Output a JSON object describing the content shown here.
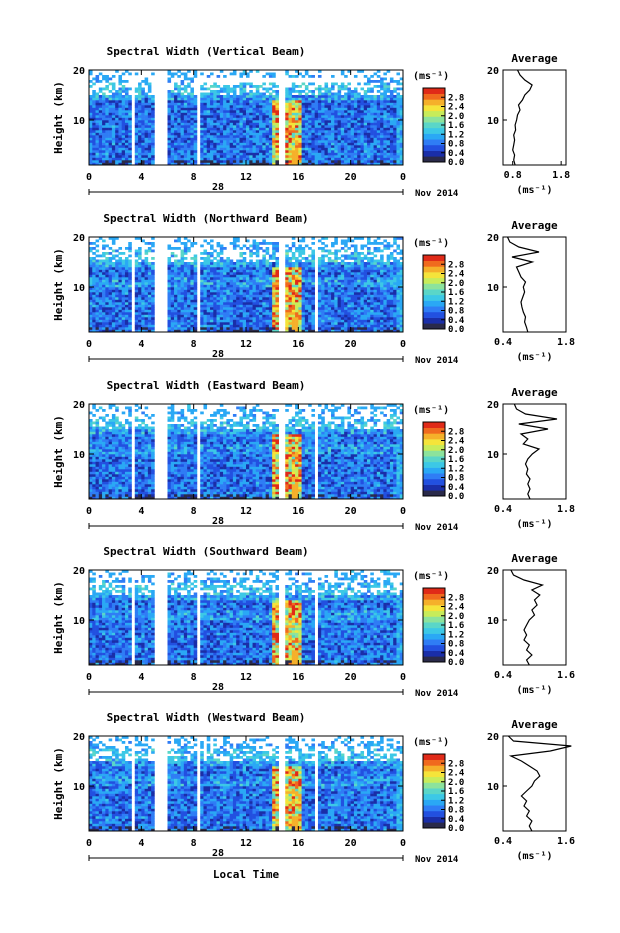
{
  "figure": {
    "xlabel": "Local Time",
    "date_label": "Nov 2014",
    "day_label": "28",
    "unit_label": "(ms⁻¹)",
    "ylabel": "Height (km)",
    "avg_title": "Average",
    "colors": [
      "#2a2a4a",
      "#1a2ea8",
      "#2250e0",
      "#2f7df5",
      "#2aa8f5",
      "#3cc8e6",
      "#5ad6c8",
      "#8ce39c",
      "#c8ec5a",
      "#f5e43a",
      "#f5b02a",
      "#f06a1e",
      "#e02a18"
    ],
    "blank_color": "#ffffff"
  },
  "chart_data": [
    {
      "type": "heatmap",
      "title": "Spectral Width (Vertical Beam)",
      "x_ticks": [
        "0",
        "4",
        "8",
        "12",
        "16",
        "20",
        "0"
      ],
      "xlim": [
        0,
        24
      ],
      "y_ticks": [
        "20",
        "10"
      ],
      "ylim": [
        1,
        20
      ],
      "colorbar_ticks": [
        "2.8",
        "2.4",
        "2.0",
        "1.6",
        "1.2",
        "0.8",
        "0.4",
        "0.0"
      ],
      "colorbar_range": [
        0,
        3.2
      ],
      "gaps_hours": [
        [
          3.3,
          3.6
        ],
        [
          5.1,
          6.0
        ],
        [
          8.2,
          8.6
        ],
        [
          14.6,
          15.1
        ]
      ],
      "avg_profile": {
        "x_ticks": [
          "0.8",
          "1.8"
        ],
        "xlim": [
          0.6,
          1.9
        ],
        "y_ticks": [
          "20",
          "10"
        ],
        "ylim": [
          1,
          20
        ],
        "height_km": [
          1,
          2,
          3,
          4,
          5,
          6,
          7,
          8,
          9,
          10,
          11,
          12,
          13,
          14,
          15,
          16,
          17,
          18,
          19,
          20
        ],
        "width_ms": [
          0.85,
          0.82,
          0.84,
          0.8,
          0.82,
          0.84,
          0.82,
          0.86,
          0.85,
          0.88,
          0.9,
          0.95,
          0.92,
          1.0,
          1.05,
          1.15,
          1.2,
          1.05,
          0.95,
          0.9
        ]
      }
    },
    {
      "type": "heatmap",
      "title": "Spectral Width (Northward Beam)",
      "x_ticks": [
        "0",
        "4",
        "8",
        "12",
        "16",
        "20",
        "0"
      ],
      "xlim": [
        0,
        24
      ],
      "y_ticks": [
        "20",
        "10"
      ],
      "ylim": [
        1,
        20
      ],
      "colorbar_ticks": [
        "2.8",
        "2.4",
        "2.0",
        "1.6",
        "1.2",
        "0.8",
        "0.4",
        "0.0"
      ],
      "colorbar_range": [
        0,
        3.2
      ],
      "gaps_hours": [
        [
          3.3,
          3.6
        ],
        [
          5.1,
          6.0
        ],
        [
          8.2,
          8.6
        ],
        [
          14.6,
          15.1
        ],
        [
          17.2,
          17.5
        ]
      ],
      "avg_profile": {
        "x_ticks": [
          "0.4",
          "1.8"
        ],
        "xlim": [
          0.4,
          1.8
        ],
        "y_ticks": [
          "20",
          "10"
        ],
        "ylim": [
          1,
          20
        ],
        "height_km": [
          1,
          2,
          3,
          4,
          5,
          6,
          7,
          8,
          9,
          10,
          11,
          12,
          13,
          14,
          15,
          16,
          17,
          18,
          19,
          20
        ],
        "width_ms": [
          0.95,
          0.92,
          0.88,
          0.9,
          0.85,
          0.82,
          0.8,
          0.84,
          0.88,
          0.85,
          0.9,
          0.8,
          0.75,
          0.7,
          1.05,
          0.6,
          1.2,
          0.75,
          0.55,
          0.5
        ]
      }
    },
    {
      "type": "heatmap",
      "title": "Spectral Width (Eastward Beam)",
      "x_ticks": [
        "0",
        "4",
        "8",
        "12",
        "16",
        "20",
        "0"
      ],
      "xlim": [
        0,
        24
      ],
      "y_ticks": [
        "20",
        "10"
      ],
      "ylim": [
        1,
        20
      ],
      "colorbar_ticks": [
        "2.8",
        "2.4",
        "2.0",
        "1.6",
        "1.2",
        "0.8",
        "0.4",
        "0.0"
      ],
      "colorbar_range": [
        0,
        3.2
      ],
      "gaps_hours": [
        [
          3.3,
          3.6
        ],
        [
          5.1,
          6.0
        ],
        [
          8.2,
          8.6
        ],
        [
          14.6,
          15.1
        ],
        [
          17.2,
          17.5
        ]
      ],
      "avg_profile": {
        "x_ticks": [
          "0.4",
          "1.8"
        ],
        "xlim": [
          0.4,
          1.8
        ],
        "y_ticks": [
          "20",
          "10"
        ],
        "ylim": [
          1,
          20
        ],
        "height_km": [
          1,
          2,
          3,
          4,
          5,
          6,
          7,
          8,
          9,
          10,
          11,
          12,
          13,
          14,
          15,
          16,
          17,
          18,
          19,
          20
        ],
        "width_ms": [
          1.0,
          0.95,
          1.0,
          0.95,
          1.0,
          0.92,
          0.95,
          0.9,
          0.95,
          1.05,
          1.2,
          0.85,
          0.95,
          0.8,
          1.4,
          0.75,
          1.6,
          0.9,
          0.7,
          0.65
        ]
      }
    },
    {
      "type": "heatmap",
      "title": "Spectral Width (Southward Beam)",
      "x_ticks": [
        "0",
        "4",
        "8",
        "12",
        "16",
        "20",
        "0"
      ],
      "xlim": [
        0,
        24
      ],
      "y_ticks": [
        "20",
        "10"
      ],
      "ylim": [
        1,
        20
      ],
      "colorbar_ticks": [
        "2.8",
        "2.4",
        "2.0",
        "1.6",
        "1.2",
        "0.8",
        "0.4",
        "0.0"
      ],
      "colorbar_range": [
        0,
        3.2
      ],
      "gaps_hours": [
        [
          3.3,
          3.6
        ],
        [
          5.1,
          6.0
        ],
        [
          8.2,
          8.6
        ],
        [
          14.6,
          15.1
        ],
        [
          17.2,
          17.5
        ]
      ],
      "avg_profile": {
        "x_ticks": [
          "0.4",
          "1.6"
        ],
        "xlim": [
          0.4,
          1.6
        ],
        "y_ticks": [
          "20",
          "10"
        ],
        "ylim": [
          1,
          20
        ],
        "height_km": [
          1,
          2,
          3,
          4,
          5,
          6,
          7,
          8,
          9,
          10,
          11,
          12,
          13,
          14,
          15,
          16,
          17,
          18,
          19,
          20
        ],
        "width_ms": [
          0.9,
          0.85,
          0.95,
          0.85,
          0.9,
          0.8,
          0.85,
          0.8,
          0.85,
          0.9,
          1.0,
          0.95,
          1.05,
          1.0,
          1.1,
          0.95,
          1.15,
          0.8,
          0.6,
          0.55
        ]
      }
    },
    {
      "type": "heatmap",
      "title": "Spectral Width (Westward Beam)",
      "x_ticks": [
        "0",
        "4",
        "8",
        "12",
        "16",
        "20",
        "0"
      ],
      "xlim": [
        0,
        24
      ],
      "y_ticks": [
        "20",
        "10"
      ],
      "ylim": [
        1,
        20
      ],
      "colorbar_ticks": [
        "2.8",
        "2.4",
        "2.0",
        "1.6",
        "1.2",
        "0.8",
        "0.4",
        "0.0"
      ],
      "colorbar_range": [
        0,
        3.2
      ],
      "gaps_hours": [
        [
          3.3,
          3.6
        ],
        [
          5.1,
          6.0
        ],
        [
          8.2,
          8.6
        ],
        [
          14.6,
          15.1
        ],
        [
          17.2,
          17.5
        ]
      ],
      "avg_profile": {
        "x_ticks": [
          "0.4",
          "1.6"
        ],
        "xlim": [
          0.4,
          1.6
        ],
        "y_ticks": [
          "20",
          "10"
        ],
        "ylim": [
          1,
          20
        ],
        "height_km": [
          1,
          2,
          3,
          4,
          5,
          6,
          7,
          8,
          9,
          10,
          11,
          12,
          13,
          14,
          15,
          16,
          17,
          18,
          19,
          20
        ],
        "width_ms": [
          0.95,
          0.9,
          0.95,
          0.85,
          0.9,
          0.8,
          0.85,
          0.75,
          0.85,
          0.95,
          1.0,
          1.1,
          1.05,
          0.9,
          0.75,
          0.55,
          1.3,
          1.7,
          0.6,
          0.5
        ]
      }
    }
  ]
}
